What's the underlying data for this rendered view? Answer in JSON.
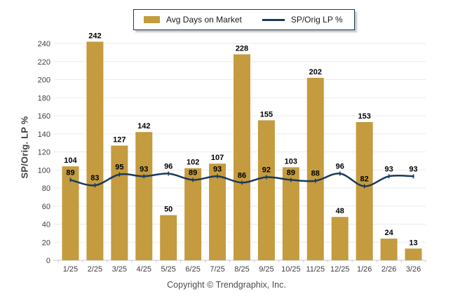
{
  "legend": {
    "bar_label": "Avg Days on Market",
    "line_label": "SP/Orig LP %"
  },
  "footer": {
    "copyright": "Copyright © Trendgraphix, Inc."
  },
  "colors": {
    "bar": "#C49B3E",
    "line": "#1A3A5C",
    "gridline": "#EBEBEB",
    "axis": "#C9C9C9",
    "tick_label": "#3F3F3F",
    "value_label": "#000000"
  },
  "chart_data": {
    "type": "bar",
    "subtype": "bar+line combo",
    "categories": [
      "1/25",
      "2/25",
      "3/25",
      "4/25",
      "5/25",
      "6/25",
      "7/25",
      "8/25",
      "9/25",
      "10/25",
      "11/25",
      "12/25",
      "1/26",
      "2/26",
      "3/26"
    ],
    "series": [
      {
        "name": "Avg Days on Market",
        "type": "bar",
        "color": "#C49B3E",
        "values": [
          104,
          242,
          127,
          142,
          50,
          102,
          107,
          228,
          155,
          103,
          202,
          48,
          153,
          24,
          13
        ]
      },
      {
        "name": "SP/Orig LP %",
        "type": "line",
        "color": "#1A3A5C",
        "values": [
          89,
          83,
          95,
          93,
          96,
          89,
          93,
          86,
          92,
          89,
          88,
          96,
          82,
          93,
          93
        ]
      }
    ],
    "title": "",
    "xlabel": "",
    "ylabel": "SP/Orig. LP %",
    "ylim": [
      0,
      240
    ],
    "ytick_step": 20,
    "grid": true,
    "legend_position": "top-center",
    "data_labels": true
  }
}
